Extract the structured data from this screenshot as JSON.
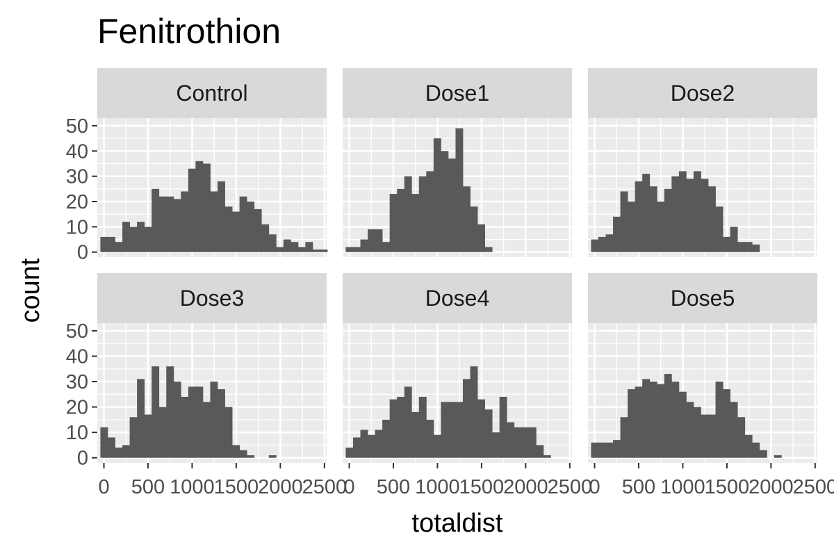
{
  "chart_data": {
    "type": "bar",
    "title": "Fenitrothion",
    "xlabel": "totaldist",
    "ylabel": "count",
    "xlim": [
      -75,
      2525
    ],
    "ylim": [
      -2,
      53
    ],
    "x_ticks": [
      "0",
      "500",
      "1000",
      "1500",
      "2000",
      "2500"
    ],
    "y_ticks": [
      "0",
      "10",
      "20",
      "30",
      "40",
      "50"
    ],
    "grid": true,
    "bin_start": -40,
    "bin_width": 83,
    "panels": [
      {
        "name": "Control",
        "counts": [
          6,
          6,
          4,
          12,
          10,
          12,
          10,
          25,
          22,
          22,
          21,
          24,
          33,
          36,
          35,
          24,
          28,
          18,
          16,
          22,
          20,
          17,
          11,
          7,
          2,
          5,
          4,
          2,
          4,
          1,
          1
        ]
      },
      {
        "name": "Dose1",
        "counts": [
          2,
          2,
          5,
          9,
          9,
          4,
          23,
          25,
          30,
          23,
          30,
          32,
          45,
          40,
          37,
          49,
          26,
          18,
          11,
          2
        ]
      },
      {
        "name": "Dose2",
        "counts": [
          5,
          6,
          7,
          14,
          24,
          20,
          28,
          31,
          26,
          20,
          25,
          30,
          32,
          29,
          32,
          29,
          26,
          18,
          6,
          10,
          4,
          4,
          3
        ]
      },
      {
        "name": "Dose3",
        "counts": [
          12,
          8,
          4,
          5,
          16,
          31,
          17,
          36,
          20,
          36,
          30,
          24,
          28,
          28,
          22,
          30,
          27,
          20,
          5,
          3,
          1,
          0,
          0,
          1
        ]
      },
      {
        "name": "Dose4",
        "counts": [
          4,
          8,
          11,
          9,
          11,
          15,
          23,
          24,
          28,
          18,
          24,
          15,
          9,
          22,
          22,
          22,
          31,
          36,
          23,
          19,
          10,
          24,
          14,
          12,
          12,
          12,
          5,
          1
        ]
      },
      {
        "name": "Dose5",
        "counts": [
          6,
          6,
          6,
          7,
          16,
          27,
          28,
          31,
          30,
          29,
          33,
          30,
          26,
          22,
          20,
          17,
          17,
          30,
          27,
          22,
          16,
          9,
          6,
          3,
          0,
          1
        ]
      }
    ]
  }
}
